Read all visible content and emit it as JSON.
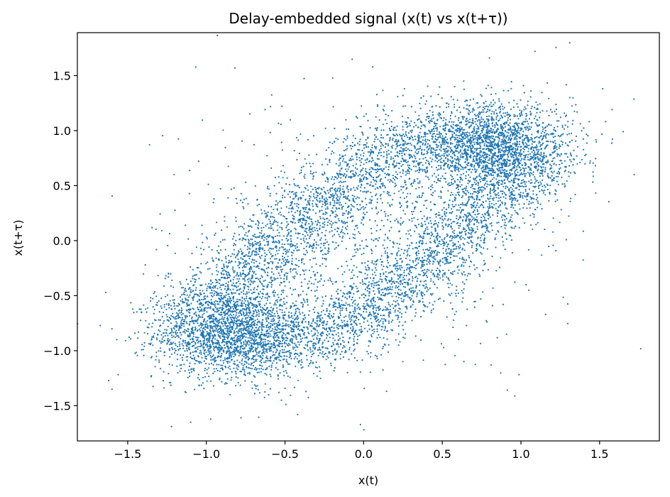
{
  "chart_data": {
    "type": "scatter",
    "title": "Delay-embedded signal (x(t) vs x(t+τ))",
    "xlabel": "x(t)",
    "ylabel": "x(t+τ)",
    "xlim": [
      -1.82,
      1.88
    ],
    "ylim": [
      -1.82,
      1.89
    ],
    "x_ticks": [
      -1.5,
      -1.0,
      -0.5,
      0.0,
      0.5,
      1.0,
      1.5
    ],
    "y_ticks": [
      -1.5,
      -1.0,
      -0.5,
      0.0,
      0.5,
      1.0,
      1.5
    ],
    "x_tick_labels": [
      "−1.5",
      "−1.0",
      "−0.5",
      "0.0",
      "0.5",
      "1.0",
      "1.5"
    ],
    "y_tick_labels": [
      "−1.5",
      "−1.0",
      "−0.5",
      "0.0",
      "0.5",
      "1.0",
      "1.5"
    ],
    "grid": false,
    "legend": "none",
    "series": [
      {
        "color": "#1f77b4",
        "marker_size": 1.5,
        "clusters": [
          {
            "center": [
              -0.85,
              -0.85
            ],
            "spread": [
              0.24,
              0.2
            ],
            "count": 1900
          },
          {
            "center": [
              0.85,
              0.85
            ],
            "spread": [
              0.24,
              0.2
            ],
            "count": 1900
          },
          {
            "path": "upper-left arc",
            "points": [
              [
                -1.05,
                -0.7
              ],
              [
                -0.75,
                -0.3
              ],
              [
                -0.45,
                0.1
              ],
              [
                -0.15,
                0.45
              ],
              [
                0.15,
                0.75
              ],
              [
                0.45,
                0.9
              ],
              [
                0.7,
                0.95
              ]
            ],
            "spread": 0.17,
            "count": 2600
          },
          {
            "path": "lower-right arc",
            "points": [
              [
                -0.7,
                -0.95
              ],
              [
                -0.45,
                -0.9
              ],
              [
                -0.15,
                -0.75
              ],
              [
                0.15,
                -0.45
              ],
              [
                0.45,
                -0.1
              ],
              [
                0.75,
                0.3
              ],
              [
                1.05,
                0.7
              ]
            ],
            "spread": 0.17,
            "count": 2600
          },
          {
            "center": [
              0.0,
              0.0
            ],
            "spread": [
              0.55,
              0.55
            ],
            "count": 500
          },
          {
            "center": [
              0.0,
              0.0
            ],
            "spread": [
              0.85,
              0.85
            ],
            "count": 150
          }
        ],
        "notable_points": [
          [
            1.72,
            0.6
          ],
          [
            1.65,
            0.99
          ],
          [
            1.58,
            1.19
          ],
          [
            1.52,
            1.38
          ],
          [
            1.09,
            1.72
          ],
          [
            0.8,
            1.66
          ],
          [
            -1.64,
            -0.47
          ],
          [
            -1.6,
            -1.35
          ],
          [
            -1.1,
            -1.65
          ],
          [
            -0.78,
            -1.61
          ],
          [
            -0.42,
            -1.58
          ],
          [
            0.43,
            0.42
          ],
          [
            0.49,
            0.45
          ],
          [
            -0.04,
            -0.59
          ],
          [
            1.05,
            -0.45
          ],
          [
            1.1,
            0.85
          ]
        ]
      }
    ]
  }
}
